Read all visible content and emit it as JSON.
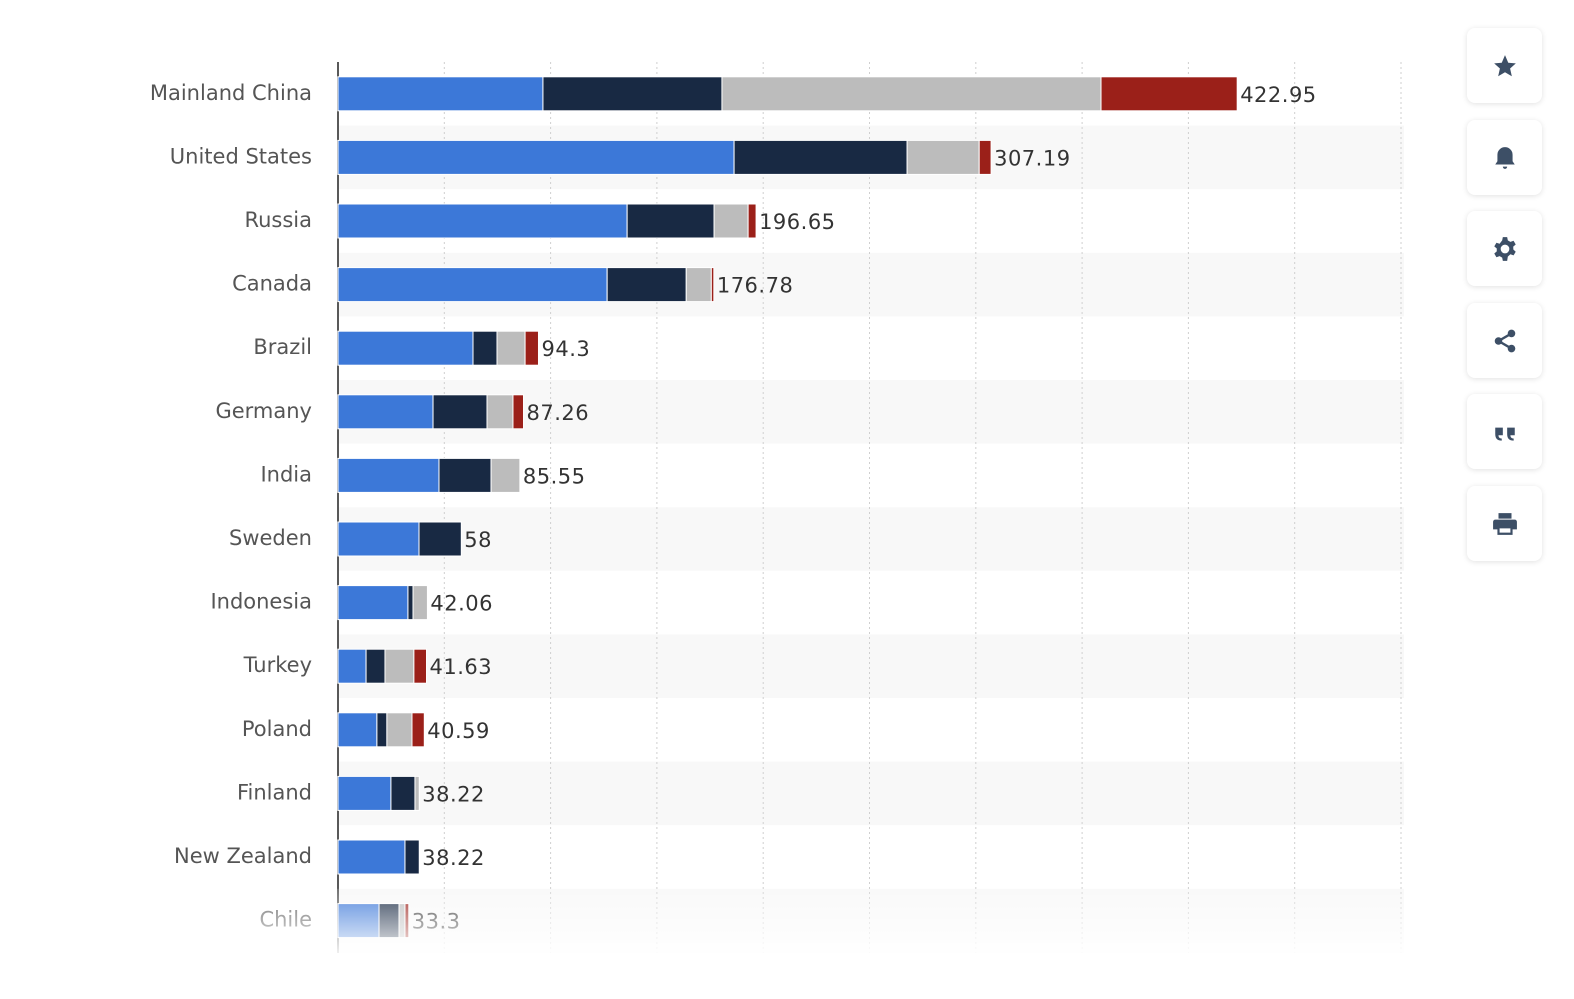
{
  "chart_data": {
    "type": "stacked-bar-horizontal",
    "categories": [
      "Mainland China",
      "United States",
      "Russia",
      "Canada",
      "Brazil",
      "Germany",
      "India",
      "Sweden",
      "Indonesia",
      "Turkey",
      "Poland",
      "Finland",
      "New Zealand",
      "Chile"
    ],
    "series": [
      {
        "color": "#3c78d8",
        "values": [
          96.4,
          186.3,
          136.0,
          126.6,
          63.5,
          44.7,
          47.5,
          38.1,
          32.9,
          13.2,
          18.3,
          24.9,
          31.5,
          19.3
        ]
      },
      {
        "color": "#182943",
        "values": [
          84.2,
          81.4,
          40.9,
          37.2,
          11.3,
          25.4,
          24.5,
          19.9,
          2.4,
          8.9,
          4.7,
          11.3,
          6.72,
          9.4
        ]
      },
      {
        "color": "#bcbcbc",
        "values": [
          178.3,
          33.9,
          16.0,
          11.8,
          13.2,
          12.2,
          13.55,
          0,
          6.76,
          13.6,
          11.8,
          2.02,
          0,
          2.8
        ]
      },
      {
        "color": "#9b2019",
        "values": [
          64.05,
          5.59,
          3.75,
          1.18,
          6.3,
          4.96,
          0,
          0,
          0,
          5.93,
          5.79,
          0,
          0,
          1.8
        ]
      }
    ],
    "totals": [
      422.95,
      307.19,
      196.65,
      176.78,
      94.3,
      87.26,
      85.55,
      58,
      42.06,
      41.63,
      40.59,
      38.22,
      38.22,
      33.3
    ],
    "xlim": [
      0,
      500
    ],
    "xticks": [
      0,
      50,
      100,
      150,
      200,
      250,
      300,
      350,
      400,
      450,
      500
    ],
    "grid": true
  }
}
